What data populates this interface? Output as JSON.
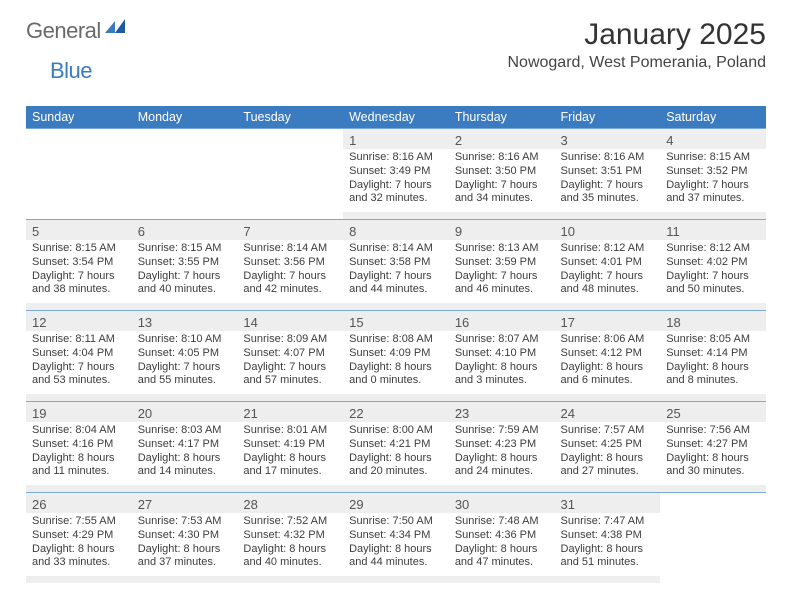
{
  "brand": {
    "part1": "General",
    "part2": "Blue"
  },
  "title": "January 2025",
  "subtitle": "Nowogard, West Pomerania, Poland",
  "colors": {
    "header_bg": "#3b7bbf",
    "header_text": "#ffffff",
    "row_alt_bg": "#eeeeee",
    "border": "#7aa8d4",
    "text": "#3d3d3d"
  },
  "weekdays": [
    "Sunday",
    "Monday",
    "Tuesday",
    "Wednesday",
    "Thursday",
    "Friday",
    "Saturday"
  ],
  "labels": {
    "sunrise": "Sunrise:",
    "sunset": "Sunset:",
    "daylight": "Daylight:"
  },
  "weeks": [
    [
      null,
      null,
      null,
      {
        "n": "1",
        "sr": "8:16 AM",
        "ss": "3:49 PM",
        "dl": "7 hours and 32 minutes."
      },
      {
        "n": "2",
        "sr": "8:16 AM",
        "ss": "3:50 PM",
        "dl": "7 hours and 34 minutes."
      },
      {
        "n": "3",
        "sr": "8:16 AM",
        "ss": "3:51 PM",
        "dl": "7 hours and 35 minutes."
      },
      {
        "n": "4",
        "sr": "8:15 AM",
        "ss": "3:52 PM",
        "dl": "7 hours and 37 minutes."
      }
    ],
    [
      {
        "n": "5",
        "sr": "8:15 AM",
        "ss": "3:54 PM",
        "dl": "7 hours and 38 minutes."
      },
      {
        "n": "6",
        "sr": "8:15 AM",
        "ss": "3:55 PM",
        "dl": "7 hours and 40 minutes."
      },
      {
        "n": "7",
        "sr": "8:14 AM",
        "ss": "3:56 PM",
        "dl": "7 hours and 42 minutes."
      },
      {
        "n": "8",
        "sr": "8:14 AM",
        "ss": "3:58 PM",
        "dl": "7 hours and 44 minutes."
      },
      {
        "n": "9",
        "sr": "8:13 AM",
        "ss": "3:59 PM",
        "dl": "7 hours and 46 minutes."
      },
      {
        "n": "10",
        "sr": "8:12 AM",
        "ss": "4:01 PM",
        "dl": "7 hours and 48 minutes."
      },
      {
        "n": "11",
        "sr": "8:12 AM",
        "ss": "4:02 PM",
        "dl": "7 hours and 50 minutes."
      }
    ],
    [
      {
        "n": "12",
        "sr": "8:11 AM",
        "ss": "4:04 PM",
        "dl": "7 hours and 53 minutes."
      },
      {
        "n": "13",
        "sr": "8:10 AM",
        "ss": "4:05 PM",
        "dl": "7 hours and 55 minutes."
      },
      {
        "n": "14",
        "sr": "8:09 AM",
        "ss": "4:07 PM",
        "dl": "7 hours and 57 minutes."
      },
      {
        "n": "15",
        "sr": "8:08 AM",
        "ss": "4:09 PM",
        "dl": "8 hours and 0 minutes."
      },
      {
        "n": "16",
        "sr": "8:07 AM",
        "ss": "4:10 PM",
        "dl": "8 hours and 3 minutes."
      },
      {
        "n": "17",
        "sr": "8:06 AM",
        "ss": "4:12 PM",
        "dl": "8 hours and 6 minutes."
      },
      {
        "n": "18",
        "sr": "8:05 AM",
        "ss": "4:14 PM",
        "dl": "8 hours and 8 minutes."
      }
    ],
    [
      {
        "n": "19",
        "sr": "8:04 AM",
        "ss": "4:16 PM",
        "dl": "8 hours and 11 minutes."
      },
      {
        "n": "20",
        "sr": "8:03 AM",
        "ss": "4:17 PM",
        "dl": "8 hours and 14 minutes."
      },
      {
        "n": "21",
        "sr": "8:01 AM",
        "ss": "4:19 PM",
        "dl": "8 hours and 17 minutes."
      },
      {
        "n": "22",
        "sr": "8:00 AM",
        "ss": "4:21 PM",
        "dl": "8 hours and 20 minutes."
      },
      {
        "n": "23",
        "sr": "7:59 AM",
        "ss": "4:23 PM",
        "dl": "8 hours and 24 minutes."
      },
      {
        "n": "24",
        "sr": "7:57 AM",
        "ss": "4:25 PM",
        "dl": "8 hours and 27 minutes."
      },
      {
        "n": "25",
        "sr": "7:56 AM",
        "ss": "4:27 PM",
        "dl": "8 hours and 30 minutes."
      }
    ],
    [
      {
        "n": "26",
        "sr": "7:55 AM",
        "ss": "4:29 PM",
        "dl": "8 hours and 33 minutes."
      },
      {
        "n": "27",
        "sr": "7:53 AM",
        "ss": "4:30 PM",
        "dl": "8 hours and 37 minutes."
      },
      {
        "n": "28",
        "sr": "7:52 AM",
        "ss": "4:32 PM",
        "dl": "8 hours and 40 minutes."
      },
      {
        "n": "29",
        "sr": "7:50 AM",
        "ss": "4:34 PM",
        "dl": "8 hours and 44 minutes."
      },
      {
        "n": "30",
        "sr": "7:48 AM",
        "ss": "4:36 PM",
        "dl": "8 hours and 47 minutes."
      },
      {
        "n": "31",
        "sr": "7:47 AM",
        "ss": "4:38 PM",
        "dl": "8 hours and 51 minutes."
      },
      null
    ]
  ]
}
